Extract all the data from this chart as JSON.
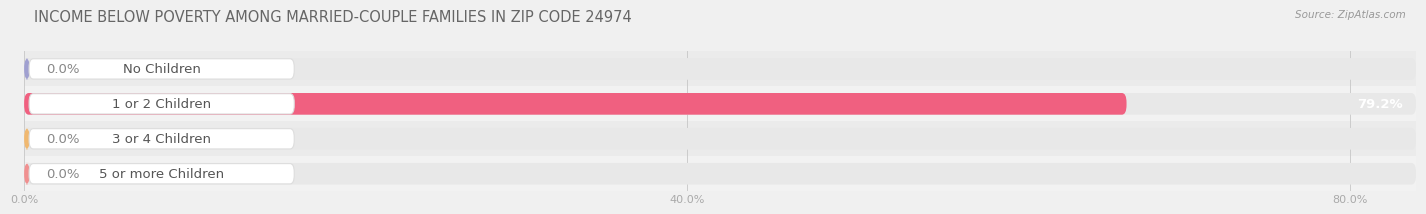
{
  "title": "INCOME BELOW POVERTY AMONG MARRIED-COUPLE FAMILIES IN ZIP CODE 24974",
  "source": "Source: ZipAtlas.com",
  "categories": [
    "No Children",
    "1 or 2 Children",
    "3 or 4 Children",
    "5 or more Children"
  ],
  "values": [
    0.0,
    79.2,
    0.0,
    0.0
  ],
  "bar_colors": [
    "#a0a0d0",
    "#f06080",
    "#f0b870",
    "#f09090"
  ],
  "bg_color": "#f0f0f0",
  "bar_bg_color": "#e0e0e0",
  "bar_bg_color2": "#e8e8e8",
  "xlim_max": 84.0,
  "xticks": [
    0.0,
    40.0,
    80.0
  ],
  "xtick_labels": [
    "0.0%",
    "40.0%",
    "80.0%"
  ],
  "bar_height": 0.62,
  "label_fontsize": 9.5,
  "title_fontsize": 10.5,
  "value_fontsize": 9.5,
  "title_color": "#666666",
  "source_color": "#999999",
  "tick_color": "#aaaaaa",
  "value_color_inside": "#ffffff",
  "value_color_outside": "#888888",
  "label_text_color": "#555555",
  "grid_color": "#cccccc",
  "label_bg_color": "#ffffff"
}
